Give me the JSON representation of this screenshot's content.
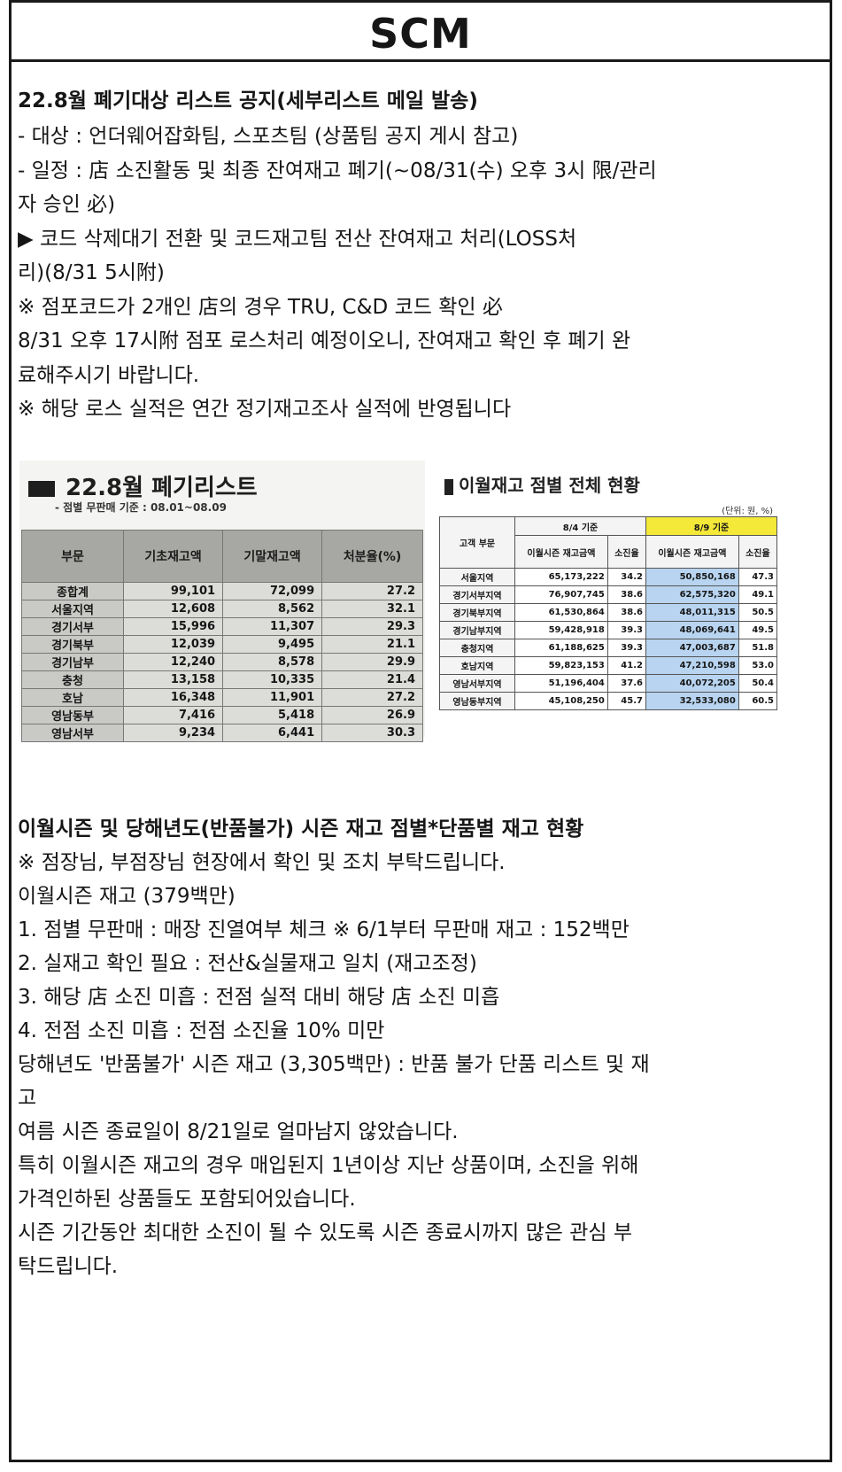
{
  "header": {
    "title": "SCM"
  },
  "notice1": {
    "heading": "22.8월 폐기대상 리스트 공지(세부리스트 메일 발송)",
    "lines": [
      " - 대상 : 언더웨어잡화팀, 스포츠팀 (상품팀 공지 게시 참고)",
      " - 일정 : 店 소진활동 및 최종 잔여재고 폐기(~08/31(수) 오후 3시 限/관리",
      "자 승인 必)",
      " ▶ 코드 삭제대기 전환 및 코드재고팀 전산 잔여재고 처리(LOSS처",
      "리)(8/31 5시附)",
      "  ※ 점포코드가 2개인 店의 경우 TRU, C&D 코드 확인 必",
      " 8/31 오후 17시附 점포 로스처리 예정이오니, 잔여재고 확인 후 폐기 완",
      "료해주시기 바랍니다.",
      " ※ 해당 로스 실적은 연간 정기재고조사 실적에 반영됩니다"
    ]
  },
  "left_table": {
    "title": "22.8월 폐기리스트",
    "subtitle": "- 점별 무판매 기준 : 08.01~08.09",
    "headers": [
      "부문",
      "기초재고액",
      "기말재고액",
      "처분율(%)"
    ],
    "rows": [
      [
        "종합계",
        "99,101",
        "72,099",
        "27.2"
      ],
      [
        "서울지역",
        "12,608",
        "8,562",
        "32.1"
      ],
      [
        "경기서부",
        "15,996",
        "11,307",
        "29.3"
      ],
      [
        "경기북부",
        "12,039",
        "9,495",
        "21.1"
      ],
      [
        "경기남부",
        "12,240",
        "8,578",
        "29.9"
      ],
      [
        "충청",
        "13,158",
        "10,335",
        "21.4"
      ],
      [
        "호남",
        "16,348",
        "11,901",
        "27.2"
      ],
      [
        "영남동부",
        "7,416",
        "5,418",
        "26.9"
      ],
      [
        "영남서부",
        "9,234",
        "6,441",
        "30.3"
      ]
    ]
  },
  "right_table": {
    "title": "이월재고 점별 전체 현황",
    "unit": "(단위: 원, %)",
    "group_headers": [
      "8/4 기준",
      "8/9 기준"
    ],
    "headers": [
      "고객 부문",
      "이월시즌 재고금액",
      "소진율",
      "이월시즌 재고금액",
      "소진율"
    ],
    "rows": [
      [
        "서울지역",
        "65,173,222",
        "34.2",
        "50,850,168",
        "47.3"
      ],
      [
        "경기서부지역",
        "76,907,745",
        "38.6",
        "62,575,320",
        "49.1"
      ],
      [
        "경기북부지역",
        "61,530,864",
        "38.6",
        "48,011,315",
        "50.5"
      ],
      [
        "경기남부지역",
        "59,428,918",
        "39.3",
        "48,069,641",
        "49.5"
      ],
      [
        "충청지역",
        "61,188,625",
        "39.3",
        "47,003,687",
        "51.8"
      ],
      [
        "호남지역",
        "59,823,153",
        "41.2",
        "47,210,598",
        "53.0"
      ],
      [
        "영남서부지역",
        "51,196,404",
        "37.6",
        "40,072,205",
        "50.4"
      ],
      [
        "영남동부지역",
        "45,108,250",
        "45.7",
        "32,533,080",
        "60.5"
      ]
    ]
  },
  "notice2": {
    "heading": "이월시즌 및 당해년도(반품불가) 시즌 재고 점별*단품별 재고 현황",
    "lines": [
      "※ 점장님, 부점장님 현장에서 확인 및 조치 부탁드립니다.",
      "이월시즌 재고 (379백만)",
      "1. 점별 무판매 : 매장 진열여부 체크  ※ 6/1부터 무판매 재고 : 152백만",
      "2. 실재고 확인 필요 : 전산&실물재고 일치 (재고조정)",
      "3. 해당 店 소진 미흡 : 전점 실적 대비 해당 店 소진 미흡",
      "4. 전점 소진 미흡 : 전점 소진율 10% 미만",
      "당해년도 '반품불가' 시즌 재고 (3,305백만) :  반품 불가 단품 리스트 및 재",
      "고",
      "여름 시즌 종료일이 8/21일로 얼마남지 않았습니다.",
      "특히 이월시즌 재고의 경우 매입된지 1년이상 지난 상품이며, 소진을 위해",
      "가격인하된 상품들도 포함되어있습니다.",
      "시즌 기간동안 최대한 소진이 될 수 있도록 시즌 종료시까지 많은 관심 부",
      "탁드립니다."
    ]
  }
}
